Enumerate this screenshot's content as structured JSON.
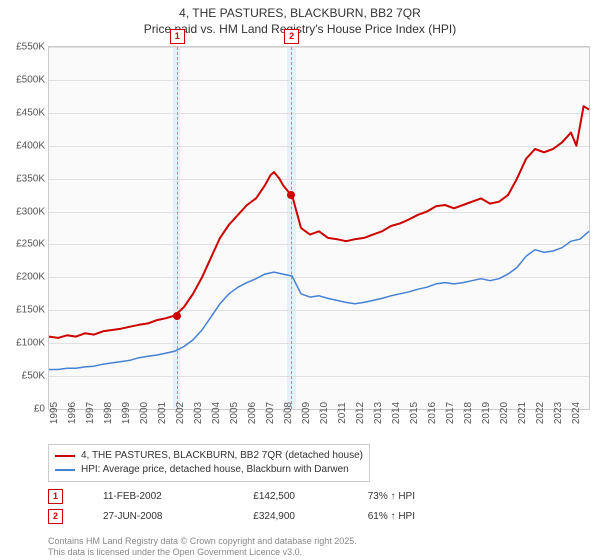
{
  "title_line1": "4, THE PASTURES, BLACKBURN, BB2 7QR",
  "title_line2": "Price paid vs. HM Land Registry's House Price Index (HPI)",
  "chart": {
    "type": "line",
    "background_color": "#fafafa",
    "grid_color": "#e0e0e0",
    "border_color": "#cccccc",
    "ylim": [
      0,
      550
    ],
    "ytick_step": 50,
    "y_labels": [
      "£0",
      "£50K",
      "£100K",
      "£150K",
      "£200K",
      "£250K",
      "£300K",
      "£350K",
      "£400K",
      "£450K",
      "£500K",
      "£550K"
    ],
    "x_years": [
      "1995",
      "1996",
      "1997",
      "1998",
      "1999",
      "2000",
      "2001",
      "2002",
      "2003",
      "2004",
      "2005",
      "2006",
      "2007",
      "2008",
      "2009",
      "2010",
      "2011",
      "2012",
      "2013",
      "2014",
      "2015",
      "2016",
      "2017",
      "2018",
      "2019",
      "2020",
      "2021",
      "2022",
      "2023",
      "2024"
    ],
    "xlim": [
      1995,
      2025
    ],
    "shaded_bands": [
      {
        "start": 2001.9,
        "end": 2002.3,
        "color": "#e8effa"
      },
      {
        "start": 2008.2,
        "end": 2008.7,
        "color": "#e8effa"
      }
    ],
    "series": [
      {
        "name": "property",
        "color": "#cc0000",
        "width": 2,
        "data": [
          [
            1995,
            110
          ],
          [
            1995.5,
            108
          ],
          [
            1996,
            112
          ],
          [
            1996.5,
            110
          ],
          [
            1997,
            115
          ],
          [
            1997.5,
            113
          ],
          [
            1998,
            118
          ],
          [
            1998.5,
            120
          ],
          [
            1999,
            122
          ],
          [
            1999.5,
            125
          ],
          [
            2000,
            128
          ],
          [
            2000.5,
            130
          ],
          [
            2001,
            135
          ],
          [
            2001.5,
            138
          ],
          [
            2002,
            142
          ],
          [
            2002.5,
            155
          ],
          [
            2003,
            175
          ],
          [
            2003.5,
            200
          ],
          [
            2004,
            230
          ],
          [
            2004.5,
            260
          ],
          [
            2005,
            280
          ],
          [
            2005.5,
            295
          ],
          [
            2006,
            310
          ],
          [
            2006.5,
            320
          ],
          [
            2007,
            340
          ],
          [
            2007.3,
            355
          ],
          [
            2007.5,
            360
          ],
          [
            2007.8,
            350
          ],
          [
            2008,
            340
          ],
          [
            2008.3,
            330
          ],
          [
            2008.5,
            325
          ],
          [
            2009,
            275
          ],
          [
            2009.5,
            265
          ],
          [
            2010,
            270
          ],
          [
            2010.5,
            260
          ],
          [
            2011,
            258
          ],
          [
            2011.5,
            255
          ],
          [
            2012,
            258
          ],
          [
            2012.5,
            260
          ],
          [
            2013,
            265
          ],
          [
            2013.5,
            270
          ],
          [
            2014,
            278
          ],
          [
            2014.5,
            282
          ],
          [
            2015,
            288
          ],
          [
            2015.5,
            295
          ],
          [
            2016,
            300
          ],
          [
            2016.5,
            308
          ],
          [
            2017,
            310
          ],
          [
            2017.5,
            305
          ],
          [
            2018,
            310
          ],
          [
            2018.5,
            315
          ],
          [
            2019,
            320
          ],
          [
            2019.5,
            312
          ],
          [
            2020,
            315
          ],
          [
            2020.5,
            325
          ],
          [
            2021,
            350
          ],
          [
            2021.5,
            380
          ],
          [
            2022,
            395
          ],
          [
            2022.5,
            390
          ],
          [
            2023,
            395
          ],
          [
            2023.5,
            405
          ],
          [
            2024,
            420
          ],
          [
            2024.3,
            400
          ],
          [
            2024.7,
            460
          ],
          [
            2025,
            455
          ]
        ]
      },
      {
        "name": "hpi",
        "color": "#4682d4",
        "width": 1.5,
        "data": [
          [
            1995,
            60
          ],
          [
            1995.5,
            60
          ],
          [
            1996,
            62
          ],
          [
            1996.5,
            62
          ],
          [
            1997,
            64
          ],
          [
            1997.5,
            65
          ],
          [
            1998,
            68
          ],
          [
            1998.5,
            70
          ],
          [
            1999,
            72
          ],
          [
            1999.5,
            74
          ],
          [
            2000,
            78
          ],
          [
            2000.5,
            80
          ],
          [
            2001,
            82
          ],
          [
            2001.5,
            85
          ],
          [
            2002,
            88
          ],
          [
            2002.5,
            95
          ],
          [
            2003,
            105
          ],
          [
            2003.5,
            120
          ],
          [
            2004,
            140
          ],
          [
            2004.5,
            160
          ],
          [
            2005,
            175
          ],
          [
            2005.5,
            185
          ],
          [
            2006,
            192
          ],
          [
            2006.5,
            198
          ],
          [
            2007,
            205
          ],
          [
            2007.5,
            208
          ],
          [
            2008,
            205
          ],
          [
            2008.5,
            202
          ],
          [
            2009,
            175
          ],
          [
            2009.5,
            170
          ],
          [
            2010,
            172
          ],
          [
            2010.5,
            168
          ],
          [
            2011,
            165
          ],
          [
            2011.5,
            162
          ],
          [
            2012,
            160
          ],
          [
            2012.5,
            162
          ],
          [
            2013,
            165
          ],
          [
            2013.5,
            168
          ],
          [
            2014,
            172
          ],
          [
            2014.5,
            175
          ],
          [
            2015,
            178
          ],
          [
            2015.5,
            182
          ],
          [
            2016,
            185
          ],
          [
            2016.5,
            190
          ],
          [
            2017,
            192
          ],
          [
            2017.5,
            190
          ],
          [
            2018,
            192
          ],
          [
            2018.5,
            195
          ],
          [
            2019,
            198
          ],
          [
            2019.5,
            195
          ],
          [
            2020,
            198
          ],
          [
            2020.5,
            205
          ],
          [
            2021,
            215
          ],
          [
            2021.5,
            232
          ],
          [
            2022,
            242
          ],
          [
            2022.5,
            238
          ],
          [
            2023,
            240
          ],
          [
            2023.5,
            245
          ],
          [
            2024,
            255
          ],
          [
            2024.5,
            258
          ],
          [
            2025,
            270
          ]
        ]
      }
    ],
    "markers": [
      {
        "id": "1",
        "year": 2002.1,
        "top_offset": -18
      },
      {
        "id": "2",
        "year": 2008.45,
        "top_offset": -18
      }
    ],
    "sale_points": [
      {
        "year": 2002.1,
        "value": 142
      },
      {
        "year": 2008.45,
        "value": 325
      }
    ]
  },
  "legend": {
    "items": [
      {
        "color": "#cc0000",
        "label": "4, THE PASTURES, BLACKBURN, BB2 7QR (detached house)"
      },
      {
        "color": "#4682d4",
        "label": "HPI: Average price, detached house, Blackburn with Darwen"
      }
    ]
  },
  "sales": [
    {
      "id": "1",
      "date": "11-FEB-2002",
      "price": "£142,500",
      "hpi": "73% ↑ HPI"
    },
    {
      "id": "2",
      "date": "27-JUN-2008",
      "price": "£324,900",
      "hpi": "61% ↑ HPI"
    }
  ],
  "footer_line1": "Contains HM Land Registry data © Crown copyright and database right 2025.",
  "footer_line2": "This data is licensed under the Open Government Licence v3.0."
}
